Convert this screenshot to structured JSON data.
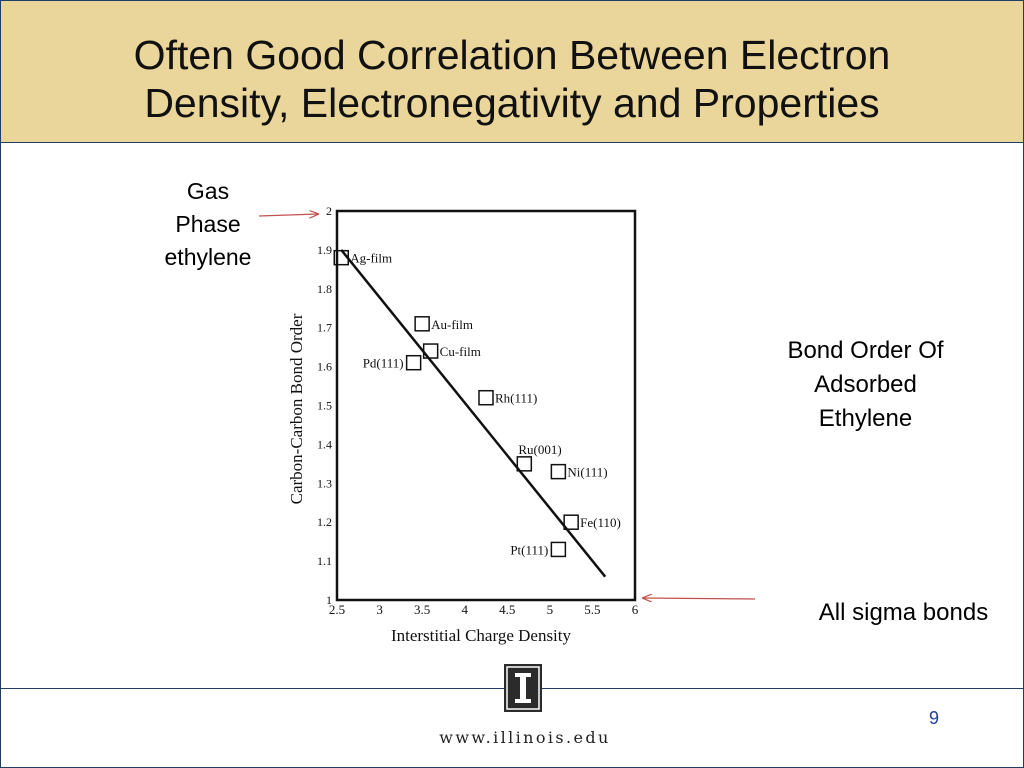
{
  "slide": {
    "title_lines": [
      "Often Good Correlation Between Electron",
      "Density, Electronegativity and Properties"
    ],
    "notes": {
      "gas_phase": [
        "Gas",
        "Phase",
        "ethylene"
      ],
      "bond_order": [
        "Bond Order Of",
        "Adsorbed",
        "Ethylene"
      ],
      "sigma": "All sigma bonds"
    },
    "footer": {
      "url": "www.illinois.edu",
      "page_number": "9",
      "logo_letter": "I"
    },
    "colors": {
      "title_bg": "#ead59a",
      "border": "#1f3f63",
      "arrow": "#c0504d",
      "page_number": "#1f3f9a"
    }
  },
  "chart_data": {
    "type": "scatter",
    "xlabel": "Interstitial Charge Density",
    "ylabel": "Carbon-Carbon Bond Order",
    "xlim": [
      2.5,
      6
    ],
    "ylim": [
      1,
      2
    ],
    "x_ticks": [
      "2.5",
      "3",
      "3.5",
      "4",
      "4.5",
      "5",
      "5.5",
      "6"
    ],
    "y_ticks": [
      "1",
      "1.1",
      "1.2",
      "1.3",
      "1.4",
      "1.5",
      "1.6",
      "1.7",
      "1.8",
      "1.9",
      "2"
    ],
    "points": [
      {
        "label": "Ag-film",
        "x": 2.55,
        "y": 1.88
      },
      {
        "label": "Au-film",
        "x": 3.5,
        "y": 1.71
      },
      {
        "label": "Cu-film",
        "x": 3.6,
        "y": 1.64
      },
      {
        "label": "Pd(111)",
        "x": 3.4,
        "y": 1.61
      },
      {
        "label": "Rh(111)",
        "x": 4.25,
        "y": 1.52
      },
      {
        "label": "Ru(001)",
        "x": 4.7,
        "y": 1.35
      },
      {
        "label": "Ni(111)",
        "x": 5.1,
        "y": 1.33
      },
      {
        "label": "Fe(110)",
        "x": 5.25,
        "y": 1.2
      },
      {
        "label": "Pt(111)",
        "x": 5.1,
        "y": 1.13
      }
    ],
    "fit_line": {
      "x": [
        2.55,
        5.65
      ],
      "y": [
        1.9,
        1.06
      ]
    },
    "grid": false,
    "legend": "none"
  }
}
